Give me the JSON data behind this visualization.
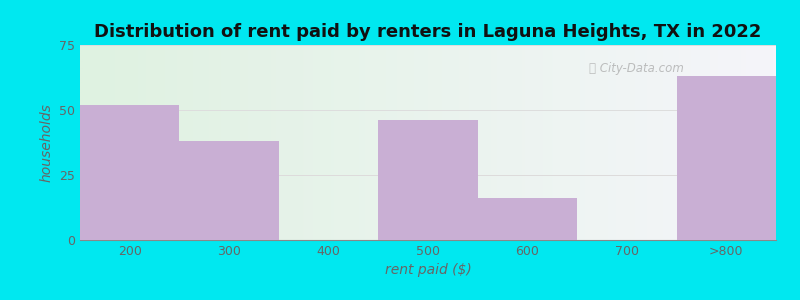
{
  "title": "Distribution of rent paid by renters in Laguna Heights, TX in 2022",
  "xlabel": "rent paid ($)",
  "ylabel": "households",
  "categories": [
    "200",
    "300",
    "400",
    "500",
    "600",
    "700",
    ">800"
  ],
  "values": [
    52,
    38,
    0,
    46,
    16,
    0,
    63
  ],
  "bar_color": "#c9afd4",
  "background_outer": "#00e8f0",
  "background_gradient_left": "#dff2e1",
  "background_gradient_right": "#f5f5fa",
  "ylim": [
    0,
    75
  ],
  "yticks": [
    0,
    25,
    50,
    75
  ],
  "title_fontsize": 13,
  "axis_label_fontsize": 10,
  "tick_fontsize": 9,
  "grid_color": "#e0b0b0",
  "grid_color_main": "#dddddd",
  "text_color": "#666666",
  "title_color": "#111111"
}
